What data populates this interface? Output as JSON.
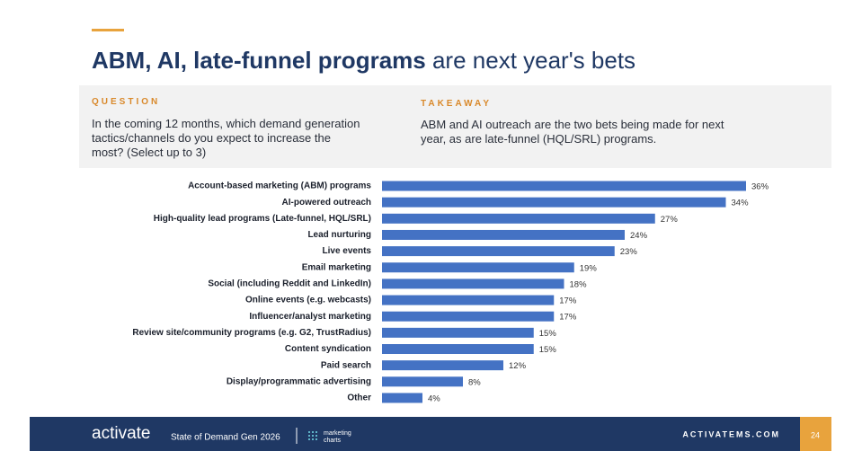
{
  "header": {
    "title_bold": "ABM, AI, late-funnel programs",
    "title_rest": "are next year's bets"
  },
  "question": {
    "label": "QUESTION",
    "text": "In the coming 12 months, which demand generation tactics/channels do you expect to increase the most? (Select up to 3)"
  },
  "takeaway": {
    "label": "TAKEAWAY",
    "text": "ABM and AI outreach are the two bets being made for next year, as are late-funnel (HQL/SRL) programs."
  },
  "chart_data": {
    "type": "barh",
    "color": "#4472c4",
    "categories": [
      "Account-based marketing (ABM) programs",
      "AI-powered outreach",
      "High-quality lead programs (Late-funnel, HQL/SRL)",
      "Lead nurturing",
      "Live events",
      "Email marketing",
      "Social (including Reddit and LinkedIn)",
      "Online events (e.g. webcasts)",
      "Influencer/analyst marketing",
      "Review site/community programs (e.g. G2, TrustRadius)",
      "Content syndication",
      "Paid search",
      "Display/programmatic advertising",
      "Other"
    ],
    "values": [
      36,
      34,
      27,
      24,
      23,
      19,
      18,
      17,
      17,
      15,
      15,
      12,
      8,
      4
    ],
    "value_labels": [
      "36%",
      "34%",
      "27%",
      "24%",
      "23%",
      "19%",
      "18%",
      "17%",
      "17%",
      "15%",
      "15%",
      "12%",
      "8%",
      "4%"
    ]
  },
  "footer": {
    "brand": "activate",
    "report": "State of Demand Gen 2026",
    "partner_line1": "marketing",
    "partner_line2": "charts",
    "site": "ACTIVATEMS.COM",
    "page": "24"
  }
}
